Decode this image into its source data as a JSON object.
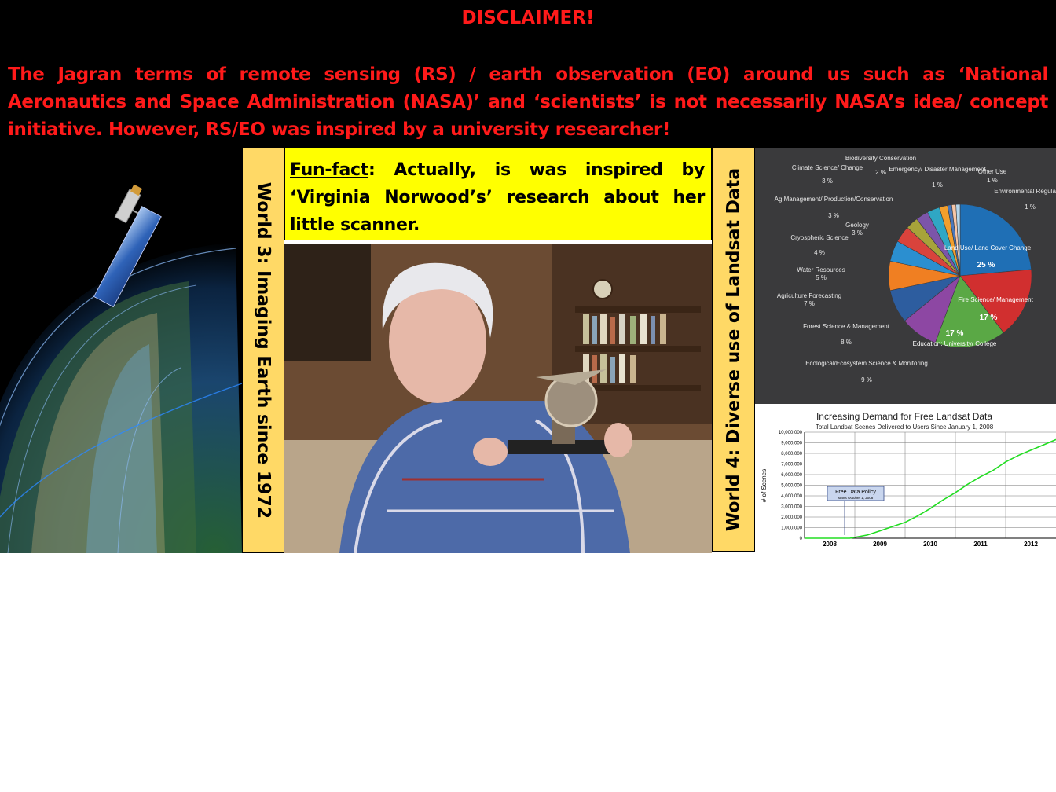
{
  "disclaimer": {
    "title": "DISCLAIMER!",
    "body": "The Jagran terms of remote sensing (RS) / earth observation (EO) around us such as ‘National Aeronautics and Space Administration (NASA)’ and ‘scientists’ is not necessarily NASA’s idea/ concept initiative. However, RS/EO was inspired by a university researcher!"
  },
  "world3": {
    "label": "World 3: Imaging Earth since 1972"
  },
  "fun_fact": {
    "label": "Fun-fact",
    "text": ": Actually, is was inspired by ‘Virginia Norwood’s’ research about her little scanner."
  },
  "world4": {
    "label": "World 4: Diverse use of Landsat Data"
  },
  "colors": {
    "disclaimer_red": "#ff1a1a",
    "label_box": "#ffd966",
    "fun_fact_bg": "#ffff00"
  },
  "chart_data": [
    {
      "type": "pie",
      "categories": [
        "Land Use/ Land Cover Change",
        "Fire Science/ Management",
        "Education: University/ College",
        "Ecological/Ecosystem Science & Monitoring",
        "Forest Science & Management",
        "Agriculture Forecasting",
        "Water Resources",
        "Cryospheric Science",
        "Geology",
        "Ag Management/ Production/Conservation",
        "Climate Science/ Change",
        "Biodiversity Conservation",
        "Emergency/ Disaster Management",
        "Other Use",
        "Environmental Regulation"
      ],
      "values": [
        25,
        17,
        17,
        9,
        8,
        7,
        5,
        4,
        3,
        3,
        3,
        2,
        1,
        1,
        1
      ],
      "value_labels": [
        "25 %",
        "17 %",
        "17 %",
        "9 %",
        "8 %",
        "7 %",
        "5 %",
        "4 %",
        "3 %",
        "3 %",
        "3 %",
        "2 %",
        "1 %",
        "1 %",
        "1 %"
      ],
      "colors": [
        "#1f6fb5",
        "#d12f2f",
        "#5aa845",
        "#8d47a3",
        "#2d5d9f",
        "#f07f22",
        "#2b8fd0",
        "#d9433c",
        "#a7a33a",
        "#7c55a9",
        "#2fa7c4",
        "#f29f2c",
        "#4a78bd",
        "#f7c6a7",
        "#b5d7ee"
      ]
    },
    {
      "type": "line",
      "title": "Increasing Demand for Free Landsat Data",
      "subtitle": "Total Landsat Scenes Delivered to Users Since January 1, 2008",
      "ylabel": "# of Scenes",
      "xlabel": "",
      "x_ticks": [
        "2008",
        "2009",
        "2010",
        "2011",
        "2012"
      ],
      "y_ticks": [
        "0",
        "1,000,000",
        "2,000,000",
        "3,000,000",
        "4,000,000",
        "5,000,000",
        "6,000,000",
        "7,000,000",
        "8,000,000",
        "9,000,000",
        "10,000,000"
      ],
      "ylim": [
        0,
        10000000
      ],
      "xlim": [
        2007.5,
        2012.5
      ],
      "x": [
        2007.5,
        2008.0,
        2008.4,
        2008.75,
        2009.0,
        2009.25,
        2009.5,
        2009.75,
        2010.0,
        2010.25,
        2010.5,
        2010.75,
        2011.0,
        2011.25,
        2011.5,
        2011.75,
        2012.0,
        2012.25,
        2012.5
      ],
      "values": [
        0,
        0,
        0,
        300000,
        700000,
        1100000,
        1500000,
        2100000,
        2800000,
        3600000,
        4300000,
        5100000,
        5800000,
        6400000,
        7200000,
        7800000,
        8300000,
        8800000,
        9300000
      ],
      "series_color": "#22dd22",
      "annotation": {
        "title": "Free Data Policy",
        "subtitle": "starts October 1, 2008"
      }
    }
  ]
}
